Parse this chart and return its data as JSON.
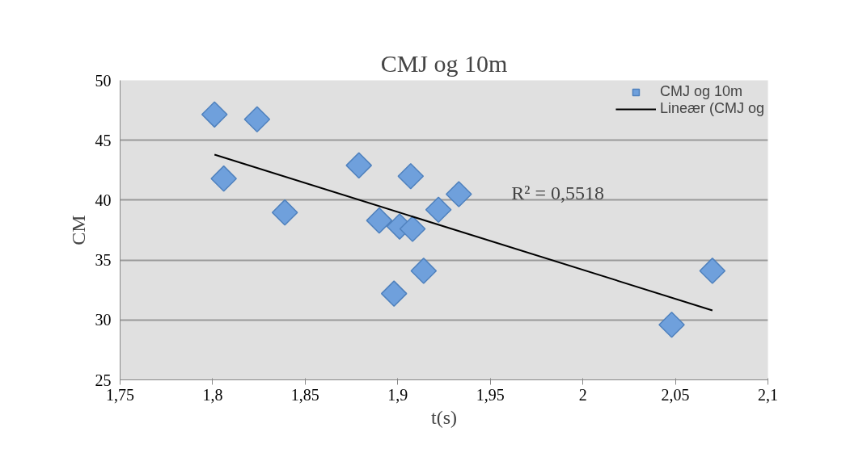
{
  "chart_data": {
    "type": "scatter",
    "title": "CMJ og 10m",
    "xlabel": "t(s)",
    "ylabel": "CM",
    "xlim": [
      1.75,
      2.1
    ],
    "xticks": [
      {
        "value": 1.75,
        "label": "1,75"
      },
      {
        "value": 1.8,
        "label": "1,8"
      },
      {
        "value": 1.85,
        "label": "1,85"
      },
      {
        "value": 1.9,
        "label": "1,9"
      },
      {
        "value": 1.95,
        "label": "1,95"
      },
      {
        "value": 2,
        "label": "2"
      },
      {
        "value": 2.05,
        "label": "2,05"
      },
      {
        "value": 2.1,
        "label": "2,1"
      }
    ],
    "ylim": [
      25,
      50
    ],
    "yticks": [
      25,
      30,
      35,
      40,
      45,
      50
    ],
    "grid": "y",
    "legend": "top right",
    "series": [
      {
        "name": "CMJ og 10m",
        "marker": "diamond",
        "color": "#6fa0dc",
        "x": [
          1.801,
          1.824,
          1.806,
          1.839,
          1.879,
          1.907,
          1.933,
          1.922,
          1.89,
          1.901,
          1.908,
          1.914,
          1.898,
          2.07,
          2.048
        ],
        "values": [
          47.15,
          46.75,
          41.8,
          38.97,
          42.9,
          42.0,
          40.5,
          39.2,
          38.3,
          37.8,
          37.6,
          34.1,
          32.2,
          34.1,
          29.6
        ]
      },
      {
        "name": "Lineær (CMJ og",
        "type": "line",
        "color": "#000000",
        "x": [
          1.801,
          2.07
        ],
        "values": [
          43.8,
          30.8
        ]
      }
    ],
    "annotations": [
      "R² = 0,5518"
    ]
  }
}
